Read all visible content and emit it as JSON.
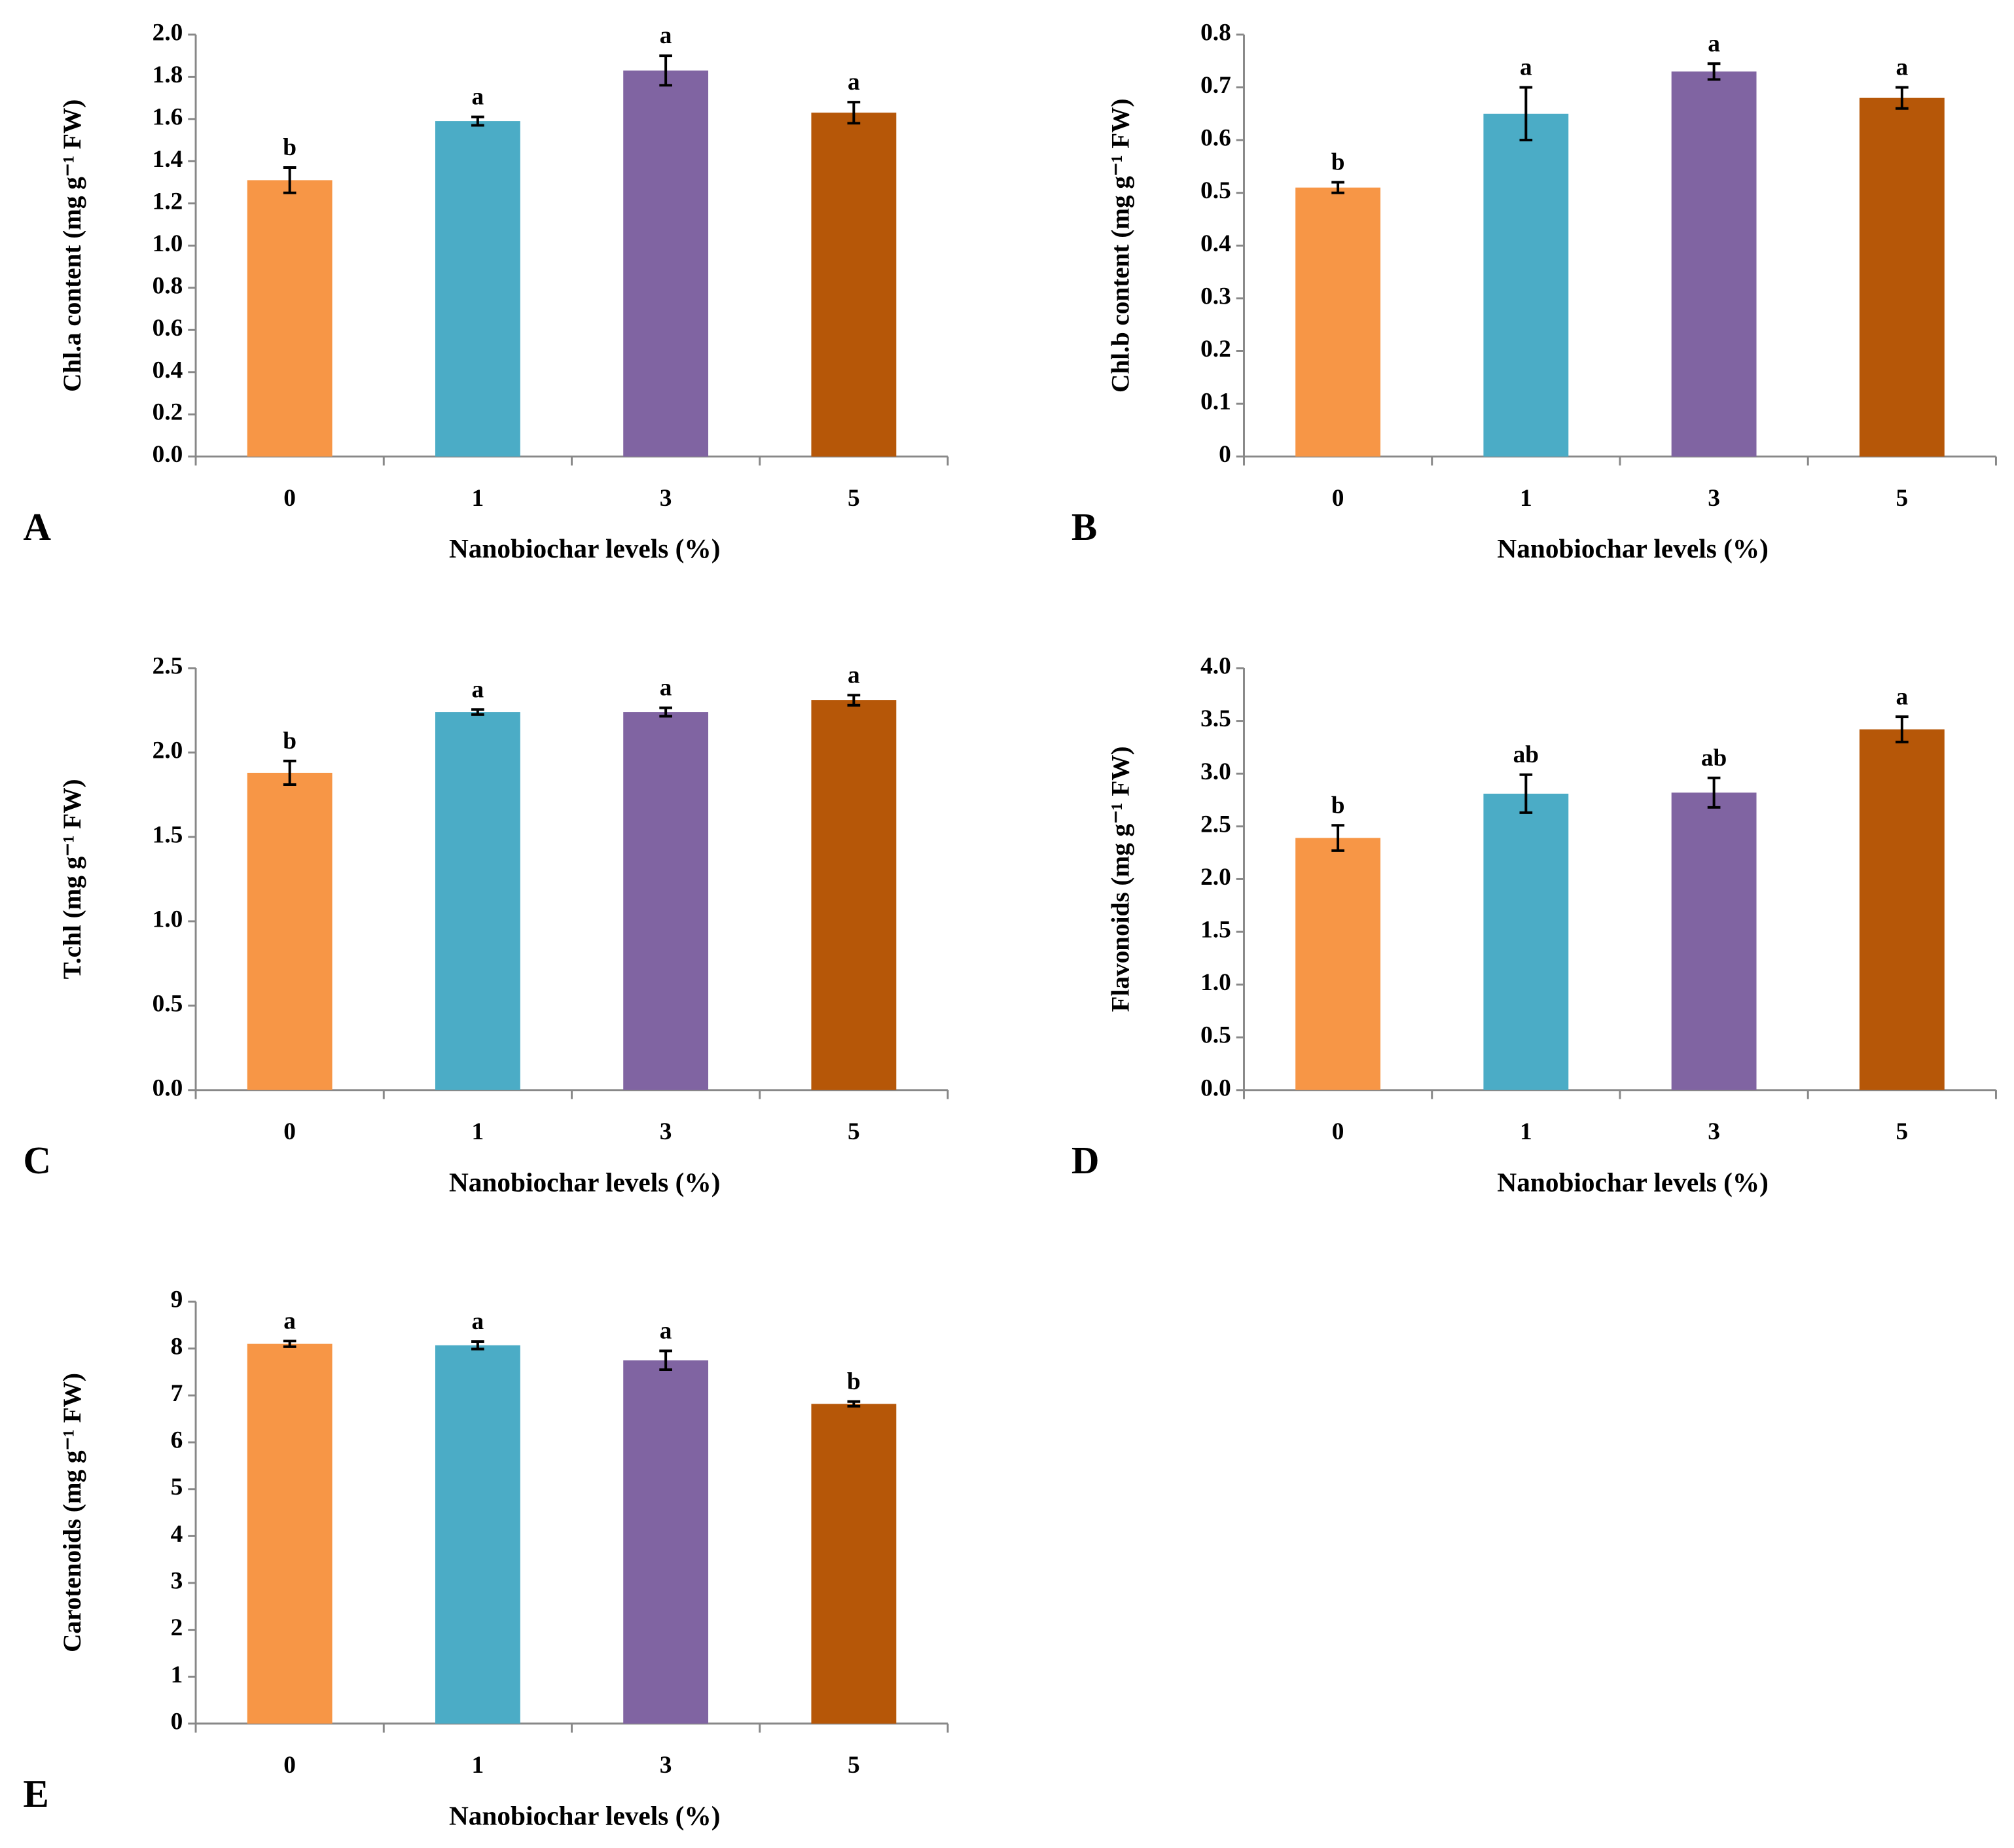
{
  "chart_data": [
    {
      "type": "bar",
      "panel_label": "A",
      "y_label": "Chl.a content (mg g⁻¹ FW)",
      "x_label": "Nanobiochar levels (%)",
      "categories": [
        "0",
        "1",
        "3",
        "5"
      ],
      "values": [
        1.31,
        1.59,
        1.83,
        1.63
      ],
      "errors": [
        0.06,
        0.02,
        0.07,
        0.05
      ],
      "annotations": [
        "b",
        "a",
        "a",
        "a"
      ],
      "colors": [
        "#f79646",
        "#4bacc6",
        "#8064a2",
        "#b65708"
      ],
      "ylim": [
        0,
        2
      ],
      "yticks": [
        {
          "value": 0,
          "label": "0.0"
        },
        0.2,
        0.4,
        0.6,
        0.8,
        {
          "value": 1,
          "label": "1.0"
        },
        1.2,
        1.4,
        1.6,
        1.8,
        {
          "value": 2,
          "label": "2.0"
        }
      ]
    },
    {
      "type": "bar",
      "panel_label": "B",
      "y_label": "Chl.b content (mg g⁻¹ FW)",
      "x_label": "Nanobiochar levels (%)",
      "categories": [
        "0",
        "1",
        "3",
        "5"
      ],
      "values": [
        0.51,
        0.65,
        0.73,
        0.68
      ],
      "errors": [
        0.01,
        0.05,
        0.015,
        0.02
      ],
      "annotations": [
        "b",
        "a",
        "a",
        "a"
      ],
      "colors": [
        "#f79646",
        "#4bacc6",
        "#8064a2",
        "#b65708"
      ],
      "ylim": [
        0,
        0.8
      ],
      "yticks": [
        0,
        0.1,
        0.2,
        0.3,
        0.4,
        0.5,
        0.6,
        0.7,
        0.8
      ]
    },
    {
      "type": "bar",
      "panel_label": "C",
      "y_label": "T.chl  (mg g⁻¹ FW)",
      "x_label": "Nanobiochar levels (%)",
      "categories": [
        "0",
        "1",
        "3",
        "5"
      ],
      "values": [
        1.88,
        2.24,
        2.24,
        2.31
      ],
      "errors": [
        0.07,
        0.015,
        0.025,
        0.03
      ],
      "annotations": [
        "b",
        "a",
        "a",
        "a"
      ],
      "colors": [
        "#f79646",
        "#4bacc6",
        "#8064a2",
        "#b65708"
      ],
      "ylim": [
        0,
        2.5
      ],
      "yticks": [
        {
          "value": 0,
          "label": "0.0"
        },
        0.5,
        {
          "value": 1,
          "label": "1.0"
        },
        1.5,
        {
          "value": 2,
          "label": "2.0"
        },
        2.5
      ]
    },
    {
      "type": "bar",
      "panel_label": "D",
      "y_label": "Flavonoids  (mg g⁻¹ FW)",
      "x_label": "Nanobiochar levels (%)",
      "categories": [
        "0",
        "1",
        "3",
        "5"
      ],
      "values": [
        2.39,
        2.81,
        2.82,
        3.42
      ],
      "errors": [
        0.12,
        0.18,
        0.14,
        0.12
      ],
      "annotations": [
        "b",
        "ab",
        "ab",
        "a"
      ],
      "colors": [
        "#f79646",
        "#4bacc6",
        "#8064a2",
        "#b65708"
      ],
      "ylim": [
        0,
        4
      ],
      "yticks": [
        {
          "value": 0,
          "label": "0.0"
        },
        0.5,
        {
          "value": 1,
          "label": "1.0"
        },
        1.5,
        {
          "value": 2,
          "label": "2.0"
        },
        2.5,
        {
          "value": 3,
          "label": "3.0"
        },
        3.5,
        {
          "value": 4,
          "label": "4.0"
        }
      ]
    },
    {
      "type": "bar",
      "panel_label": "E",
      "y_label": "Carotenoids (mg g⁻¹ FW)",
      "x_label": "Nanobiochar levels (%)",
      "categories": [
        "0",
        "1",
        "3",
        "5"
      ],
      "values": [
        8.1,
        8.07,
        7.75,
        6.82
      ],
      "errors": [
        0.06,
        0.08,
        0.2,
        0.05
      ],
      "annotations": [
        "a",
        "a",
        "a",
        "b"
      ],
      "colors": [
        "#f79646",
        "#4bacc6",
        "#8064a2",
        "#b65708"
      ],
      "ylim": [
        0,
        9
      ],
      "yticks": [
        0,
        1,
        2,
        3,
        4,
        5,
        6,
        7,
        8,
        9
      ]
    }
  ]
}
